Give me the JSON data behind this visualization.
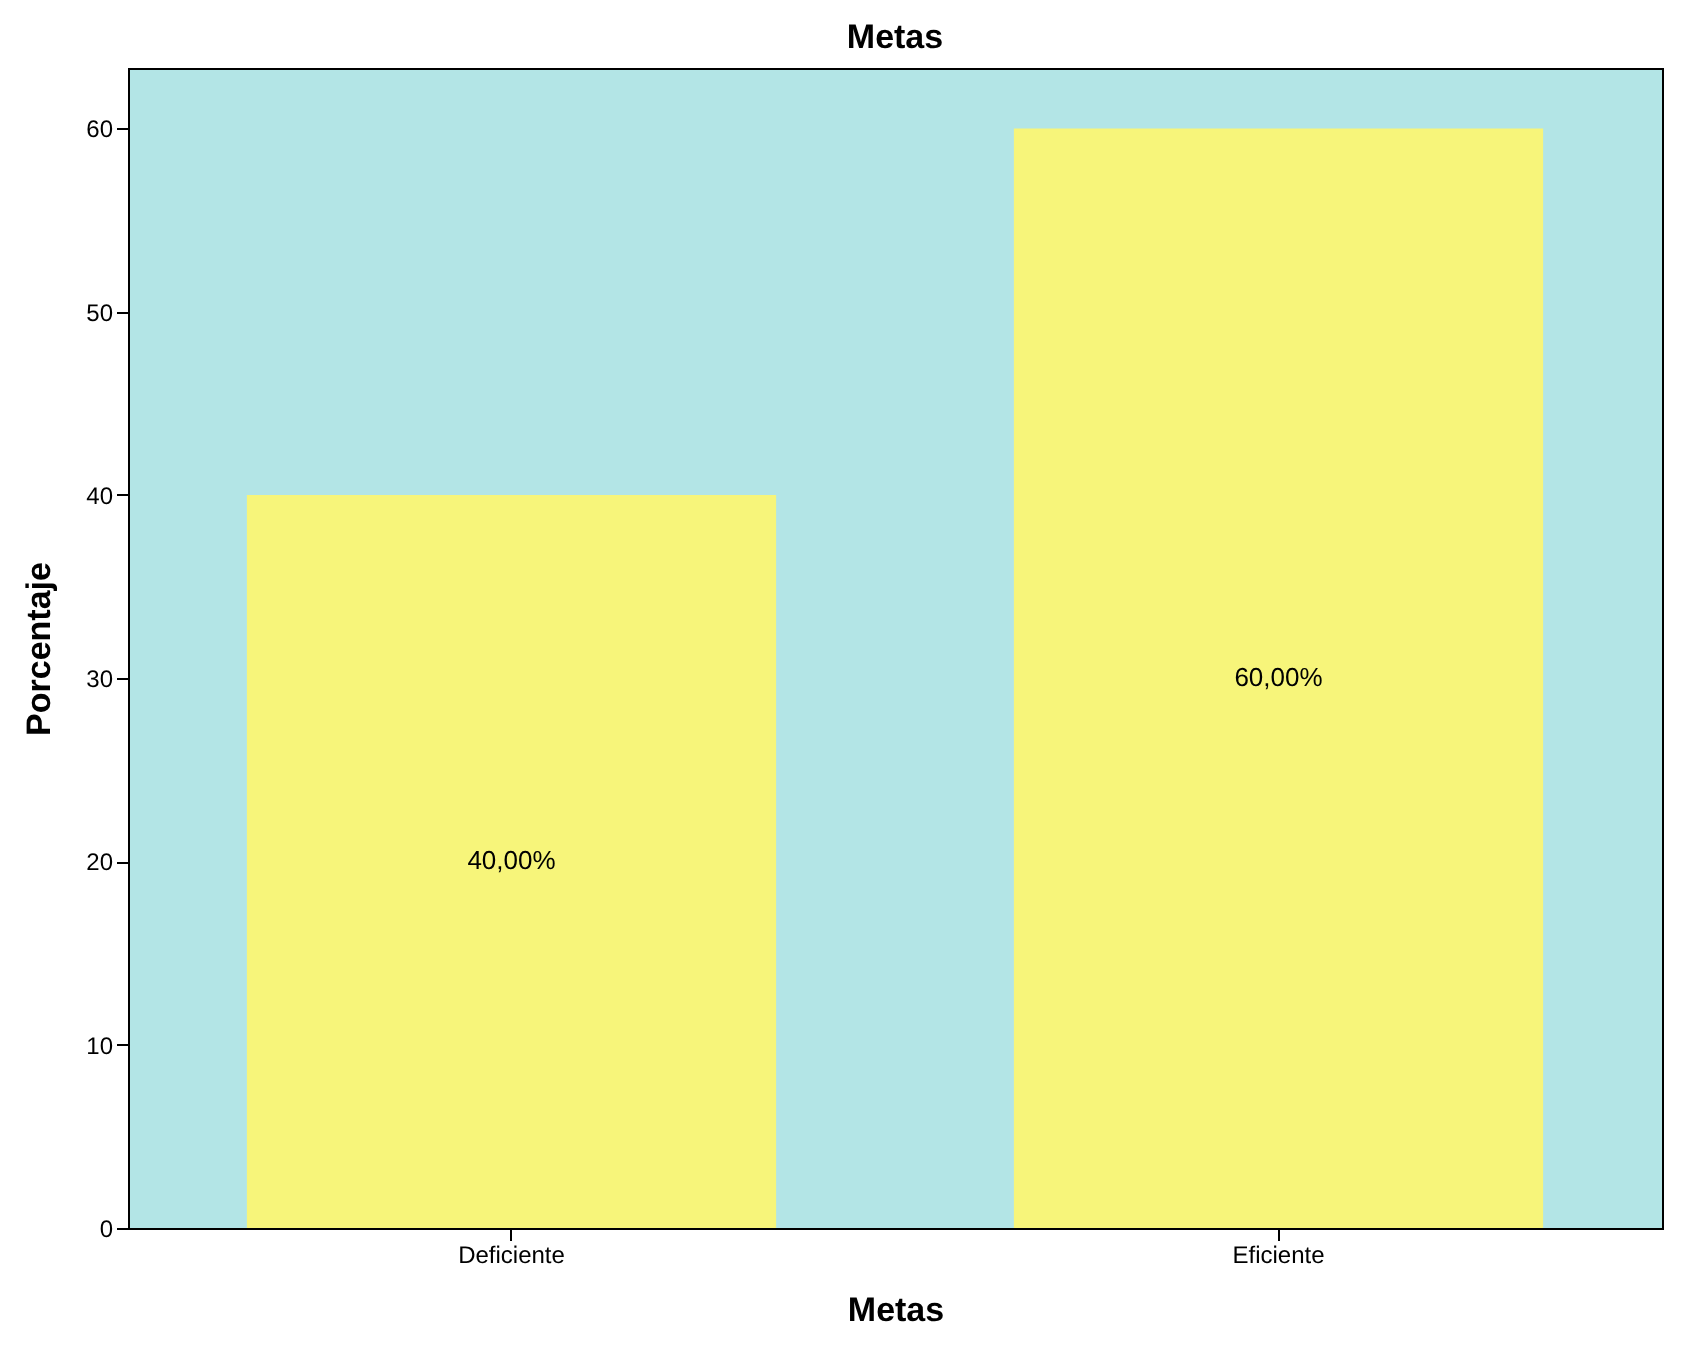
{
  "chart_data": {
    "type": "bar",
    "title": "Metas",
    "xlabel": "Metas",
    "ylabel": "Porcentaje",
    "categories": [
      "Deficiente",
      "Eficiente"
    ],
    "values": [
      40,
      60
    ],
    "value_labels": [
      "40,00%",
      "60,00%"
    ],
    "color": "#f7f57a",
    "ylim": [
      0,
      63.3
    ],
    "yticks": [
      0,
      10,
      20,
      30,
      40,
      50,
      60
    ],
    "grid": false
  }
}
